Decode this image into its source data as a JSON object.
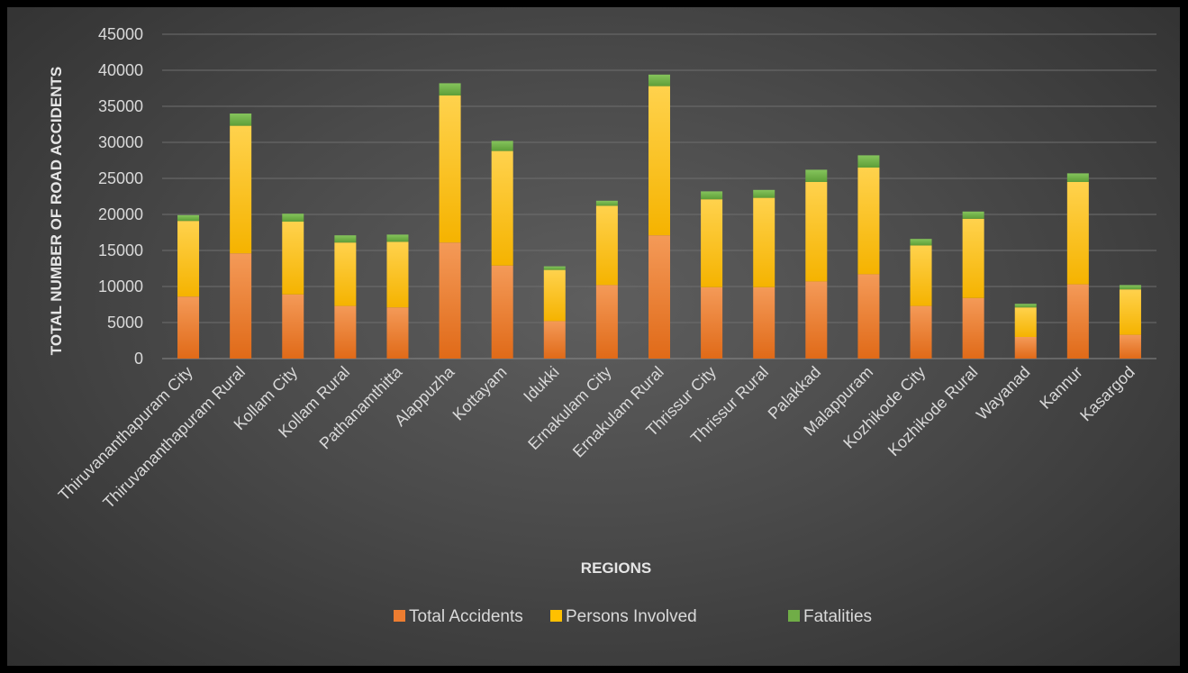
{
  "chart_data": {
    "type": "bar",
    "stacked": true,
    "title": "",
    "xlabel": "REGIONS",
    "ylabel": "TOTAL NUMBER OF ROAD ACCIDENTS",
    "ylim": [
      0,
      45000
    ],
    "yticks": [
      0,
      5000,
      10000,
      15000,
      20000,
      25000,
      30000,
      35000,
      40000,
      45000
    ],
    "grid": true,
    "legend_position": "bottom",
    "categories": [
      "Thiruvananthapuram City",
      "Thiruvananthapuram Rural",
      "Kollam City",
      "Kollam Rural",
      "Pathanamthitta",
      "Alappuzha",
      "Kottayam",
      "Idukki",
      "Ernakulam City",
      "Ernakulam Rural",
      "Thrissur City",
      "Thrissur Rural",
      "Palakkad",
      "Malappuram",
      "Kozhikode City",
      "Kozhikode Rural",
      "Wayanad",
      "Kannur",
      "Kasargod"
    ],
    "series": [
      {
        "name": "Total Accidents",
        "color": "#ed7d31",
        "values": [
          8600,
          14600,
          8900,
          7300,
          7100,
          16100,
          12900,
          5200,
          10200,
          17100,
          9900,
          9900,
          10700,
          11700,
          7300,
          8400,
          3000,
          10300,
          3300
        ]
      },
      {
        "name": "Persons Involved",
        "color": "#ffc000",
        "values": [
          10500,
          17700,
          10100,
          8800,
          9100,
          20400,
          15900,
          7100,
          11000,
          20700,
          12200,
          12400,
          13800,
          14800,
          8400,
          11000,
          4100,
          14200,
          6300
        ]
      },
      {
        "name": "Fatalities",
        "color": "#70ad47",
        "values": [
          800,
          1700,
          1100,
          1000,
          1000,
          1700,
          1400,
          500,
          700,
          1600,
          1100,
          1100,
          1700,
          1700,
          900,
          1000,
          500,
          1200,
          600
        ]
      }
    ]
  }
}
